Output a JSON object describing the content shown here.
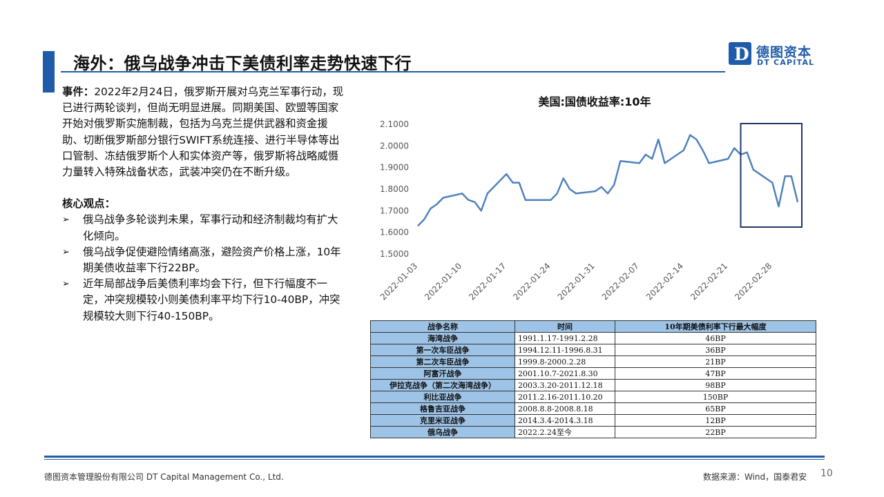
{
  "header": {
    "title": "海外：俄乌战争冲击下美债利率走势快速下行",
    "logo": {
      "glyph": "D",
      "name_cn": "德图资本",
      "name_en": "DT CAPITAL",
      "color": "#1F5BA8"
    }
  },
  "left": {
    "event_label": "事件：",
    "event_text": "2022年2月24日，俄罗斯开展对乌克兰军事行动，现已进行两轮谈判，但尚无明显进展。同期美国、欧盟等国家开始对俄罗斯实施制裁，包括为乌克兰提供武器和资金援助、切断俄罗斯部分银行SWIFT系统连接、进行半导体等出口管制、冻结俄罗斯个人和实体资产等，俄罗斯将战略威慑力量转入特殊战备状态，武装冲突仍在不断升级。",
    "core_label": "核心观点：",
    "bullets": [
      "俄乌战争多轮谈判未果，军事行动和经济制裁均有扩大化倾向。",
      "俄乌战争促使避险情绪高涨，避险资产价格上涨，10年期美债收益率下行22BP。",
      "近年局部战争后美债利率均会下行，但下行幅度不一定，冲突规模较小则美债利率平均下行10-40BP，冲突规模较大则下行40-150BP。"
    ]
  },
  "chart_data": {
    "type": "line",
    "title": "美国:国债收益率:10年",
    "xlabel": "",
    "ylabel": "",
    "ylim": [
      1.5,
      2.1
    ],
    "y_ticks": [
      "2.1000",
      "2.0000",
      "1.9000",
      "1.8000",
      "1.7000",
      "1.6000",
      "1.5000"
    ],
    "x_ticks": [
      "2022-01-03",
      "2022-01-10",
      "2022-01-17",
      "2022-01-24",
      "2022-01-31",
      "2022-02-07",
      "2022-02-14",
      "2022-02-21",
      "2022-02-28"
    ],
    "x_range": [
      "2022-01-03",
      "2022-03-04"
    ],
    "grid": false,
    "line_color": "#4F81BD",
    "highlight_box": {
      "from": "2022-02-23",
      "to": "2022-03-04",
      "color": "#1F3864"
    },
    "series": [
      {
        "x": [
          "2022-01-03",
          "2022-01-04",
          "2022-01-05",
          "2022-01-06",
          "2022-01-07",
          "2022-01-10",
          "2022-01-11",
          "2022-01-12",
          "2022-01-13",
          "2022-01-14",
          "2022-01-17",
          "2022-01-18",
          "2022-01-19",
          "2022-01-20",
          "2022-01-21",
          "2022-01-24",
          "2022-01-25",
          "2022-01-26",
          "2022-01-27",
          "2022-01-28",
          "2022-01-31",
          "2022-02-01",
          "2022-02-02",
          "2022-02-03",
          "2022-02-04",
          "2022-02-07",
          "2022-02-08",
          "2022-02-09",
          "2022-02-10",
          "2022-02-11",
          "2022-02-14",
          "2022-02-15",
          "2022-02-16",
          "2022-02-17",
          "2022-02-18",
          "2022-02-21",
          "2022-02-22",
          "2022-02-23",
          "2022-02-24",
          "2022-02-25",
          "2022-02-28",
          "2022-03-01",
          "2022-03-02",
          "2022-03-03",
          "2022-03-04"
        ],
        "values": [
          1.63,
          1.66,
          1.71,
          1.73,
          1.76,
          1.78,
          1.75,
          1.74,
          1.7,
          1.78,
          1.87,
          1.83,
          1.83,
          1.75,
          1.75,
          1.75,
          1.78,
          1.85,
          1.8,
          1.78,
          1.79,
          1.81,
          1.78,
          1.82,
          1.93,
          1.92,
          1.96,
          1.94,
          2.03,
          1.92,
          1.98,
          2.05,
          2.03,
          1.98,
          1.92,
          1.94,
          1.99,
          1.96,
          1.97,
          1.89,
          1.83,
          1.72,
          1.86,
          1.86,
          1.74
        ]
      }
    ]
  },
  "table": {
    "headers": [
      "战争名称",
      "时间",
      "10年期美债利率下行最大幅度"
    ],
    "rows": [
      [
        "海湾战争",
        "1991.1.17-1991.2.28",
        "46BP"
      ],
      [
        "第一次车臣战争",
        "1994.12.11-1996.8.31",
        "36BP"
      ],
      [
        "第二次车臣战争",
        "1999.8-2000.2.28",
        "21BP"
      ],
      [
        "阿富汗战争",
        "2001.10.7-2021.8.30",
        "47BP"
      ],
      [
        "伊拉克战争（第二次海湾战争）",
        "2003.3.20-2011.12.18",
        "98BP"
      ],
      [
        "利比亚战争",
        "2011.2.16-2011.10.20",
        "150BP"
      ],
      [
        "格鲁吉亚战争",
        "2008.8.8-2008.8.18",
        "65BP"
      ],
      [
        "克里米亚战争",
        "2014.3.4-2014.3.18",
        "12BP"
      ],
      [
        "俄乌战争",
        "2022.2.24至今",
        "22BP"
      ]
    ]
  },
  "footer": {
    "company": "德图资本管理股份有限公司  DT Capital Management  Co., Ltd.",
    "source": "数据来源：Wind，国泰君安",
    "page": "10"
  }
}
